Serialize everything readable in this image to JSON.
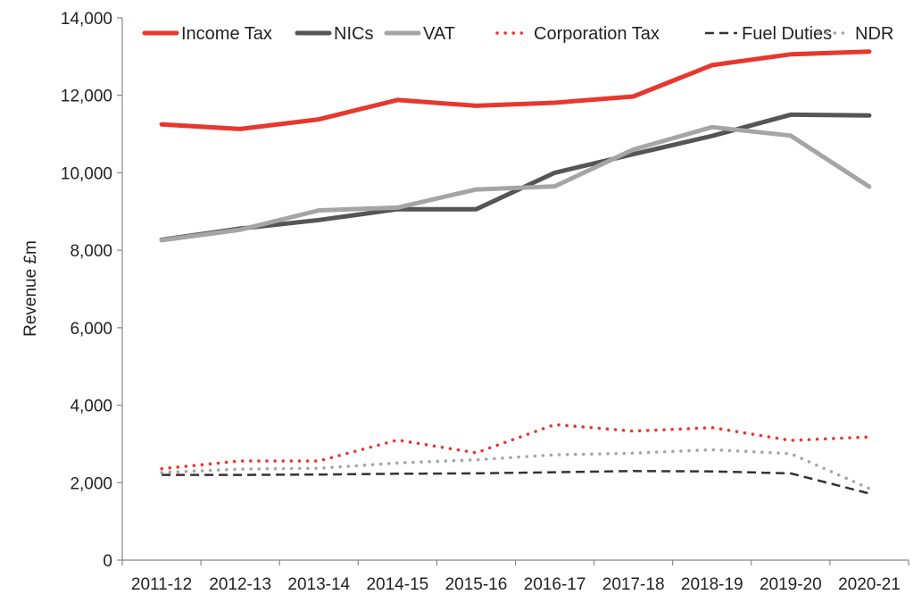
{
  "chart_data": {
    "type": "line",
    "title": "",
    "xlabel": "",
    "ylabel": "Revenue £m",
    "ylim": [
      0,
      14000
    ],
    "y_ticks": [
      0,
      2000,
      4000,
      6000,
      8000,
      10000,
      12000,
      14000
    ],
    "y_tick_labels": [
      "0",
      "2,000",
      "4,000",
      "6,000",
      "8,000",
      "10,000",
      "12,000",
      "14,000"
    ],
    "grid": false,
    "legend_position": "top",
    "categories": [
      "2011-12",
      "2012-13",
      "2013-14",
      "2014-15",
      "2015-16",
      "2016-17",
      "2017-18",
      "2018-19",
      "2019-20",
      "2020-21"
    ],
    "series": [
      {
        "name": "Income Tax",
        "color": "#e8372e",
        "style": "solid",
        "width": 5,
        "values": [
          11250,
          11130,
          11380,
          11880,
          11730,
          11810,
          11970,
          12780,
          13060,
          13130
        ]
      },
      {
        "name": "NICs",
        "color": "#555555",
        "style": "solid",
        "width": 5,
        "values": [
          8270,
          8560,
          8780,
          9060,
          9060,
          10000,
          10480,
          10950,
          11500,
          11480
        ]
      },
      {
        "name": "VAT",
        "color": "#a5a5a5",
        "style": "solid",
        "width": 5,
        "values": [
          8260,
          8530,
          9030,
          9100,
          9570,
          9650,
          10600,
          11180,
          10960,
          9640
        ]
      },
      {
        "name": "Corporation Tax",
        "color": "#e8372e",
        "style": "dotted",
        "width": 3.5,
        "values": [
          2360,
          2560,
          2560,
          3100,
          2770,
          3500,
          3330,
          3420,
          3090,
          3180
        ]
      },
      {
        "name": "Fuel Duties",
        "color": "#333333",
        "style": "dashed",
        "width": 2.5,
        "values": [
          2200,
          2200,
          2210,
          2230,
          2240,
          2270,
          2300,
          2290,
          2240,
          1720
        ]
      },
      {
        "name": "NDR",
        "color": "#a5a5a5",
        "style": "dotted",
        "width": 3.5,
        "values": [
          2260,
          2350,
          2370,
          2510,
          2590,
          2720,
          2760,
          2850,
          2750,
          1850
        ]
      }
    ]
  }
}
